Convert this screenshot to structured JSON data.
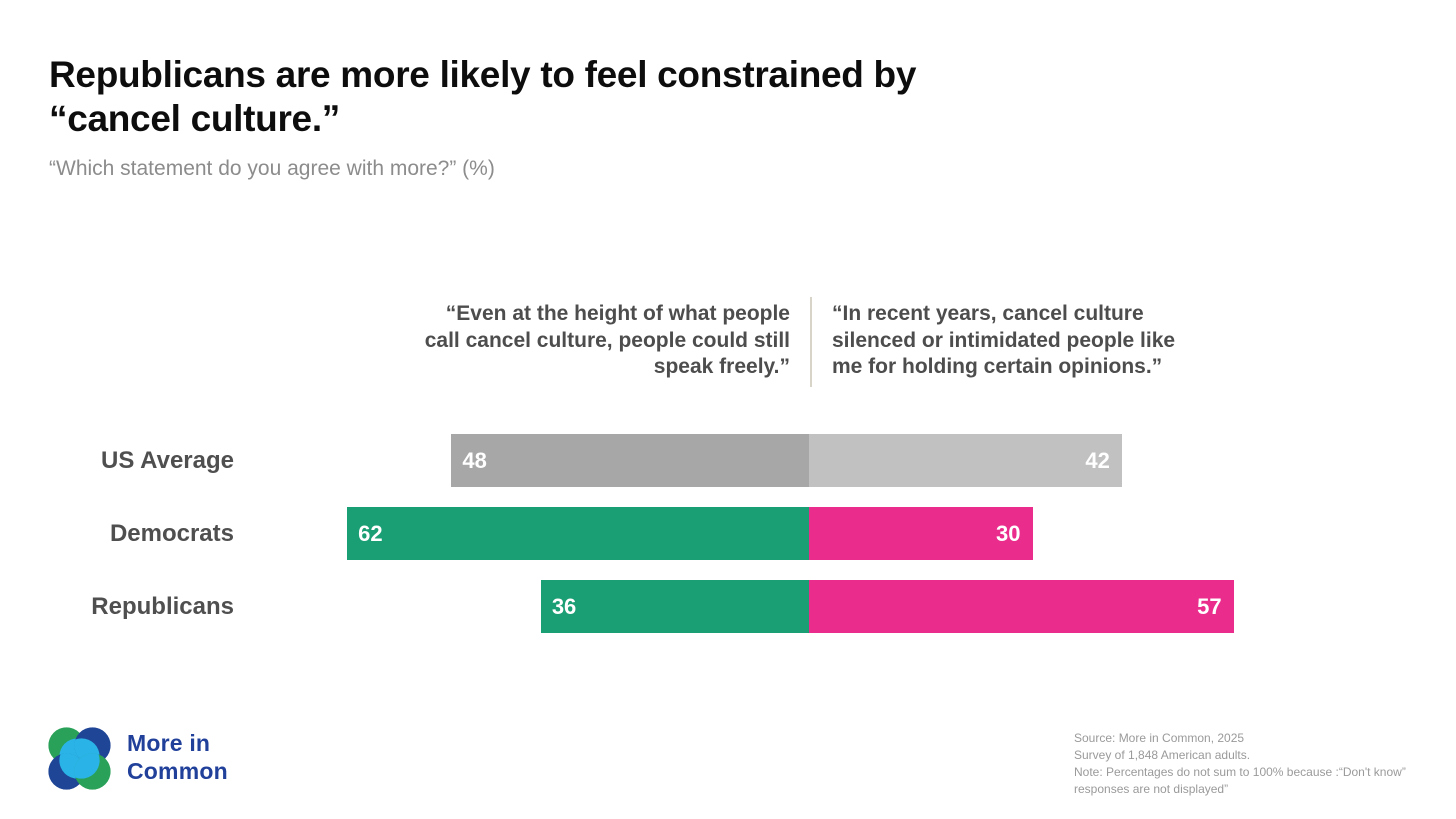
{
  "chart_data": {
    "type": "bar",
    "orientation": "horizontal",
    "diverging": true,
    "title": "Republicans are more likely to feel constrained by\n“cancel culture.”",
    "subtitle": "“Which statement do you agree with more?” (%)",
    "categories": [
      "US Average",
      "Democrats",
      "Republicans"
    ],
    "series": [
      {
        "name": "Even at the height of cancel culture people could still speak freely",
        "label": "“Even at the height of what people\ncall cancel culture, people could still\nspeak freely.”",
        "side": "left",
        "values": [
          48,
          62,
          36
        ],
        "bar_colors": [
          "#a7a7a7",
          "#1a9e73",
          "#1a9e73"
        ]
      },
      {
        "name": "Cancel culture silenced or intimidated people like me",
        "label": "“In recent years, cancel culture\nsilenced or intimidated people like\nme for holding certain opinions.”",
        "side": "right",
        "values": [
          42,
          30,
          57
        ],
        "bar_colors": [
          "#c1c1c1",
          "#ea2d8c",
          "#ea2d8c"
        ]
      }
    ],
    "value_unit": "%",
    "value_labels_shown": true,
    "legend_position": "column-headers-above-bars",
    "grid": false
  },
  "palette": {
    "green": "#1a9e73",
    "pink": "#ea2d8c",
    "gray_dark_bar": "#a7a7a7",
    "gray_light_bar": "#c1c1c1",
    "title_text": "#0d0d0d",
    "subtitle_text": "#8c8c8c",
    "header_text": "#4d4d4d",
    "row_label_text": "#4f4f4f",
    "bar_value_text": "#ffffff",
    "divider": "#d8d5c8",
    "logo_blue": "#21409a",
    "logo_green": "#2aa158",
    "logo_cyan": "#2ab3e6",
    "source_text": "#9a9a9a"
  },
  "footer": {
    "logo_wordmark": "More in\nCommon",
    "source_note": "Source: More in Common, 2025\nSurvey of 1,848 American adults.\nNote: Percentages do not sum to 100% because :“Don't know” responses are not displayed”"
  }
}
